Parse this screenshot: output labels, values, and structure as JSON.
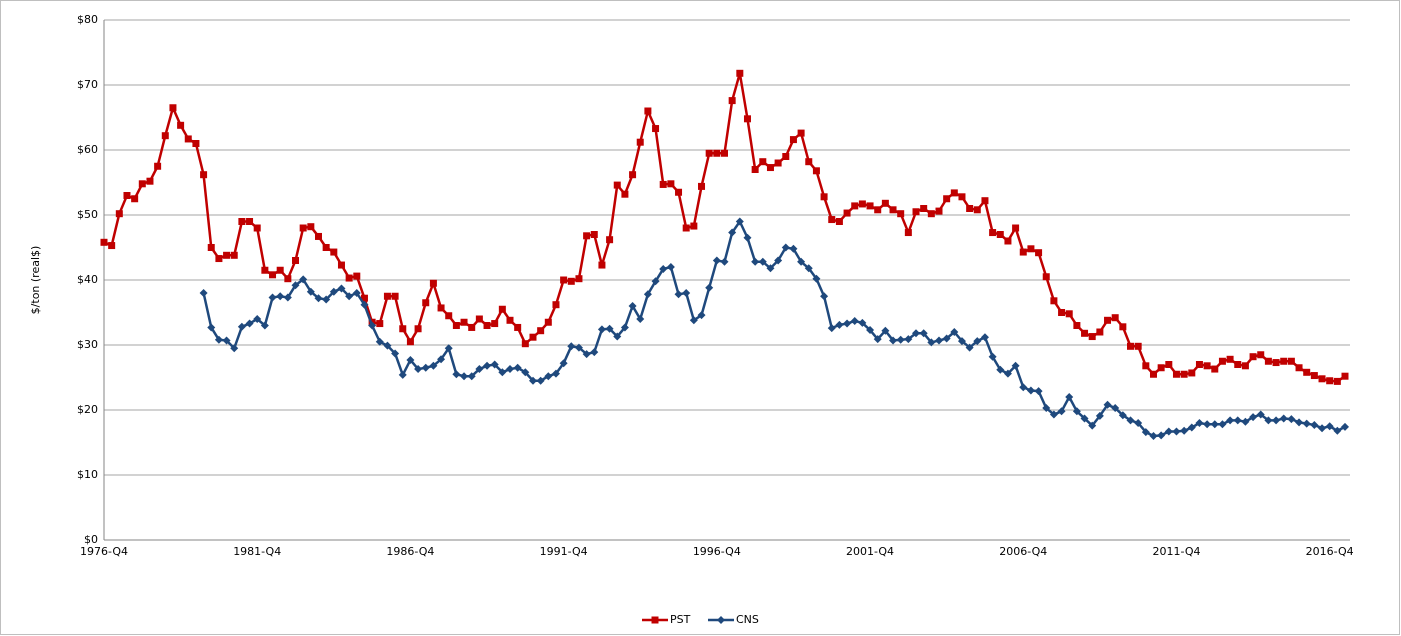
{
  "chart_data": {
    "type": "line",
    "y_label": "$/ton (real$)",
    "categories": [
      "1976-Q4",
      null,
      null,
      null,
      null,
      null,
      null,
      null,
      null,
      null,
      null,
      null,
      null,
      null,
      null,
      null,
      null,
      null,
      null,
      null,
      "1981-Q4",
      null,
      null,
      null,
      null,
      null,
      null,
      null,
      null,
      null,
      null,
      null,
      null,
      null,
      null,
      null,
      null,
      null,
      null,
      null,
      "1986-Q4",
      null,
      null,
      null,
      null,
      null,
      null,
      null,
      null,
      null,
      null,
      null,
      null,
      null,
      null,
      null,
      null,
      null,
      null,
      null,
      "1991-Q4",
      null,
      null,
      null,
      null,
      null,
      null,
      null,
      null,
      null,
      null,
      null,
      null,
      null,
      null,
      null,
      null,
      null,
      null,
      null,
      "1996-Q4",
      null,
      null,
      null,
      null,
      null,
      null,
      null,
      null,
      null,
      null,
      null,
      null,
      null,
      null,
      null,
      null,
      null,
      null,
      null,
      "2001-Q4",
      null,
      null,
      null,
      null,
      null,
      null,
      null,
      null,
      null,
      null,
      null,
      null,
      null,
      null,
      null,
      null,
      null,
      null,
      null,
      "2006-Q4",
      null,
      null,
      null,
      null,
      null,
      null,
      null,
      null,
      null,
      null,
      null,
      null,
      null,
      null,
      null,
      null,
      null,
      null,
      null,
      "2011-Q4",
      null,
      null,
      null,
      null,
      null,
      null,
      null,
      null,
      null,
      null,
      null,
      null,
      null,
      null,
      null,
      null,
      null,
      null,
      null,
      "2016-Q4",
      null,
      null
    ],
    "series": [
      {
        "name": "PST",
        "color": "#c00000",
        "marker": "square",
        "values": [
          45.8,
          45.3,
          50.2,
          53,
          52.5,
          54.8,
          55.2,
          57.5,
          62.2,
          66.5,
          63.8,
          61.7,
          61,
          56.2,
          45,
          43.3,
          43.8,
          43.8,
          49,
          49,
          48,
          41.5,
          40.8,
          41.5,
          40.2,
          43,
          48,
          48.2,
          46.7,
          45,
          44.3,
          42.3,
          40.3,
          40.6,
          37.2,
          33.5,
          33.3,
          37.5,
          37.5,
          32.5,
          30.5,
          32.5,
          36.5,
          39.5,
          35.7,
          34.5,
          33,
          33.5,
          32.7,
          34,
          33,
          33.3,
          35.5,
          33.8,
          32.7,
          30.2,
          31.2,
          32.2,
          33.5,
          36.2,
          40,
          39.8,
          40.2,
          46.8,
          47,
          42.3,
          46.2,
          54.6,
          53.2,
          56.2,
          61.2,
          66,
          63.3,
          54.7,
          54.8,
          53.5,
          48,
          48.3,
          54.4,
          59.5,
          59.5,
          59.5,
          67.6,
          71.8,
          64.8,
          57,
          58.2,
          57.3,
          58,
          59,
          61.6,
          62.6,
          58.2,
          56.8,
          52.8,
          49.3,
          49,
          50.3,
          51.4,
          51.7,
          51.4,
          50.8,
          51.8,
          50.8,
          50.2,
          47.3,
          50.5,
          51,
          50.2,
          50.6,
          52.5,
          53.4,
          52.8,
          51,
          50.8,
          52.2,
          47.3,
          47,
          46,
          48,
          44.3,
          44.8,
          44.2,
          40.5,
          36.8,
          35,
          34.8,
          33,
          31.8,
          31.3,
          32,
          33.8,
          34.2,
          32.8,
          29.8,
          29.8,
          26.8,
          25.5,
          26.5,
          27,
          25.5,
          25.5,
          25.7,
          27,
          26.8,
          26.3,
          27.5,
          27.8,
          27,
          26.8,
          28.2,
          28.5,
          27.5,
          27.3,
          27.5,
          27.5,
          26.5,
          25.8,
          25.3,
          24.8,
          24.5,
          24.4,
          25.2
        ]
      },
      {
        "name": "CNS",
        "color": "#1f497d",
        "marker": "diamond",
        "values": [
          null,
          null,
          null,
          null,
          null,
          null,
          null,
          null,
          null,
          null,
          null,
          null,
          null,
          38,
          32.7,
          30.8,
          30.7,
          29.5,
          32.8,
          33.3,
          34,
          33,
          37.3,
          37.5,
          37.3,
          39.2,
          40.1,
          38.2,
          37.2,
          37,
          38.2,
          38.7,
          37.5,
          38,
          36.2,
          33,
          30.5,
          29.9,
          28.7,
          25.4,
          27.7,
          26.3,
          26.5,
          26.8,
          27.8,
          29.5,
          25.5,
          25.2,
          25.2,
          26.3,
          26.8,
          27,
          25.8,
          26.3,
          26.5,
          25.8,
          24.5,
          24.5,
          25.2,
          25.6,
          27.2,
          29.8,
          29.6,
          28.6,
          28.9,
          32.4,
          32.5,
          31.3,
          32.7,
          36,
          34,
          37.8,
          39.8,
          41.7,
          42,
          37.8,
          38,
          33.8,
          34.6,
          38.8,
          43,
          42.8,
          47.3,
          49,
          46.5,
          42.8,
          42.8,
          41.8,
          43,
          45,
          44.8,
          42.8,
          41.8,
          40.2,
          37.5,
          32.6,
          33.1,
          33.3,
          33.7,
          33.4,
          32.3,
          30.9,
          32.2,
          30.7,
          30.8,
          30.9,
          31.8,
          31.8,
          30.4,
          30.7,
          31,
          32,
          30.6,
          29.6,
          30.6,
          31.2,
          28.2,
          26.2,
          25.6,
          26.8,
          23.5,
          23,
          22.9,
          20.3,
          19.3,
          19.8,
          22,
          19.8,
          18.7,
          17.6,
          19.1,
          20.8,
          20.3,
          19.2,
          18.4,
          18,
          16.6,
          16,
          16.1,
          16.7,
          16.7,
          16.8,
          17.3,
          18,
          17.8,
          17.8,
          17.8,
          18.4,
          18.4,
          18.2,
          18.9,
          19.3,
          18.4,
          18.4,
          18.7,
          18.6,
          18.1,
          17.9,
          17.7,
          17.2,
          17.5,
          16.8,
          17.4
        ]
      }
    ],
    "ylim": [
      0,
      80
    ],
    "yticks": [
      {
        "value": 0,
        "label": "$0"
      },
      {
        "value": 10,
        "label": "$10"
      },
      {
        "value": 20,
        "label": "$20"
      },
      {
        "value": 30,
        "label": "$30"
      },
      {
        "value": 40,
        "label": "$40"
      },
      {
        "value": 50,
        "label": "$50"
      },
      {
        "value": 60,
        "label": "$60"
      },
      {
        "value": 70,
        "label": "$70"
      },
      {
        "value": 80,
        "label": "$80"
      }
    ],
    "grid": true,
    "legend": "bottom"
  }
}
